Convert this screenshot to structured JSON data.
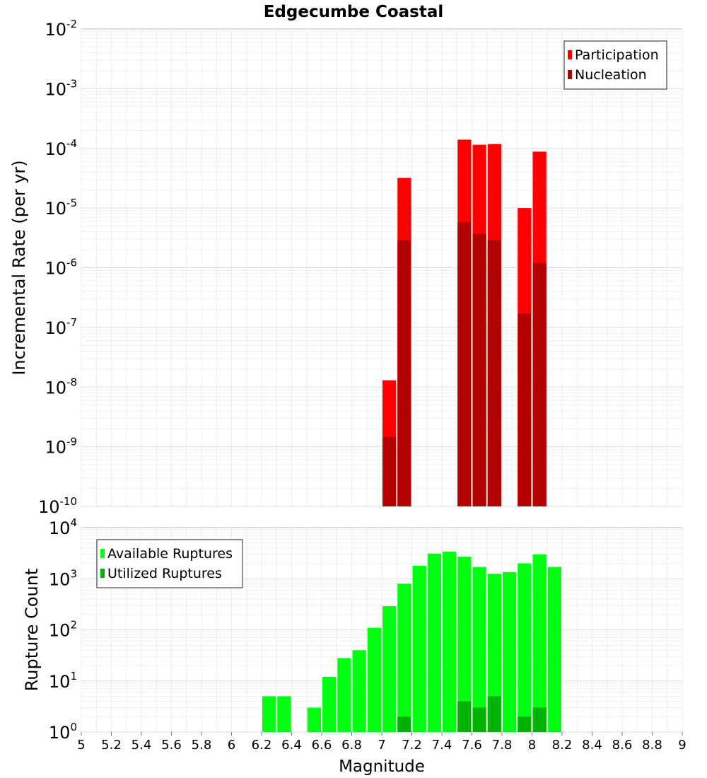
{
  "chart_data": [
    {
      "type": "bar",
      "title": "Edgecumbe Coastal",
      "xlabel": "",
      "ylabel": "Incremental Rate (per yr)",
      "xlim": [
        5,
        9
      ],
      "ylim_exp": [
        -10,
        -2
      ],
      "yscale": "log",
      "grid": true,
      "legend_position": "top-right",
      "bin_width": 0.1,
      "series": [
        {
          "name": "Participation",
          "color": "#ff0000",
          "points": [
            {
              "x": 7.05,
              "y": 1.3e-08
            },
            {
              "x": 7.15,
              "y": 3.2e-05
            },
            {
              "x": 7.55,
              "y": 0.00014
            },
            {
              "x": 7.65,
              "y": 0.000115
            },
            {
              "x": 7.75,
              "y": 0.000118
            },
            {
              "x": 7.95,
              "y": 1e-05
            },
            {
              "x": 8.05,
              "y": 8.8e-05
            }
          ]
        },
        {
          "name": "Nucleation",
          "color": "#b30000",
          "points": [
            {
              "x": 7.05,
              "y": 1.45e-09
            },
            {
              "x": 7.15,
              "y": 2.9e-06
            },
            {
              "x": 7.55,
              "y": 5.8e-06
            },
            {
              "x": 7.65,
              "y": 3.7e-06
            },
            {
              "x": 7.75,
              "y": 2.9e-06
            },
            {
              "x": 7.95,
              "y": 1.7e-07
            },
            {
              "x": 8.05,
              "y": 1.2e-06
            }
          ]
        }
      ]
    },
    {
      "type": "bar",
      "title": "",
      "xlabel": "Magnitude",
      "ylabel": "Rupture Count",
      "xlim": [
        5,
        9
      ],
      "ylim_exp": [
        0,
        4
      ],
      "yscale": "log",
      "grid": true,
      "legend_position": "top-left",
      "bin_width": 0.1,
      "xticks": [
        "5",
        "5.2",
        "5.4",
        "5.6",
        "5.8",
        "6",
        "6.2",
        "6.4",
        "6.6",
        "6.8",
        "7",
        "7.2",
        "7.4",
        "7.6",
        "7.8",
        "8",
        "8.2",
        "8.4",
        "8.6",
        "8.8",
        "9"
      ],
      "series": [
        {
          "name": "Available Ruptures",
          "color": "#00ff11",
          "points": [
            {
              "x": 6.15,
              "y": 1
            },
            {
              "x": 6.25,
              "y": 5
            },
            {
              "x": 6.35,
              "y": 5
            },
            {
              "x": 6.45,
              "y": 1
            },
            {
              "x": 6.55,
              "y": 3
            },
            {
              "x": 6.65,
              "y": 12
            },
            {
              "x": 6.75,
              "y": 28
            },
            {
              "x": 6.85,
              "y": 40
            },
            {
              "x": 6.95,
              "y": 110
            },
            {
              "x": 7.05,
              "y": 290
            },
            {
              "x": 7.15,
              "y": 800
            },
            {
              "x": 7.25,
              "y": 1800
            },
            {
              "x": 7.35,
              "y": 3100
            },
            {
              "x": 7.45,
              "y": 3400
            },
            {
              "x": 7.55,
              "y": 2700
            },
            {
              "x": 7.65,
              "y": 1700
            },
            {
              "x": 7.75,
              "y": 1250
            },
            {
              "x": 7.85,
              "y": 1350
            },
            {
              "x": 7.95,
              "y": 2000
            },
            {
              "x": 8.05,
              "y": 3000
            },
            {
              "x": 8.15,
              "y": 1700
            },
            {
              "x": 8.25,
              "y": 1
            }
          ]
        },
        {
          "name": "Utilized Ruptures",
          "color": "#00b300",
          "points": [
            {
              "x": 7.05,
              "y": 1
            },
            {
              "x": 7.15,
              "y": 2
            },
            {
              "x": 7.55,
              "y": 4
            },
            {
              "x": 7.65,
              "y": 3
            },
            {
              "x": 7.75,
              "y": 5
            },
            {
              "x": 7.95,
              "y": 2
            },
            {
              "x": 8.05,
              "y": 3
            }
          ]
        }
      ]
    }
  ]
}
